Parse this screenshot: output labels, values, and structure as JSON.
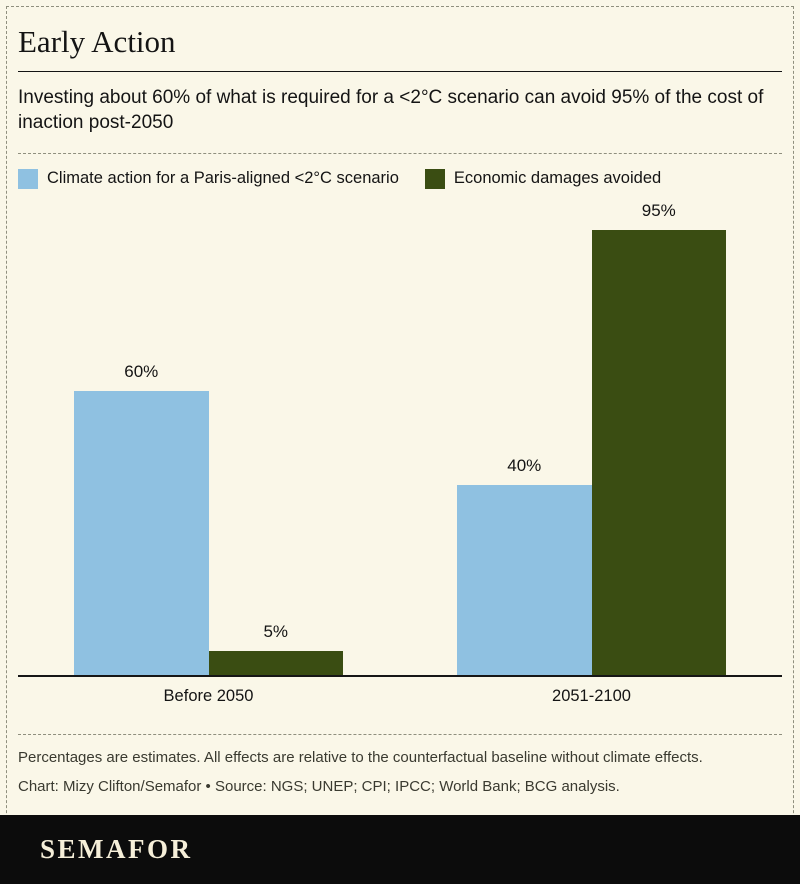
{
  "header": {
    "title": "Early Action",
    "subtitle": "Investing about 60% of what is required for a <2°C scenario can avoid 95% of the cost of inaction post-2050"
  },
  "legend": {
    "items": [
      {
        "label": "Climate action for a Paris-aligned <2°C scenario",
        "color": "#8FC1E1"
      },
      {
        "label": "Economic damages avoided",
        "color": "#3A4D12"
      }
    ]
  },
  "chart_data": {
    "type": "bar",
    "categories": [
      "Before 2050",
      "2051-2100"
    ],
    "series": [
      {
        "name": "Climate action for a Paris-aligned <2°C scenario",
        "key": "climate-action-bar",
        "values": [
          60,
          40
        ],
        "color": "#8FC1E1"
      },
      {
        "name": "Economic damages avoided",
        "key": "damages-avoided-bar",
        "values": [
          5,
          95
        ],
        "color": "#3A4D12"
      }
    ],
    "unit": "%",
    "ylim": [
      0,
      100
    ],
    "grid": false,
    "legend_position": "top",
    "value_labels": [
      "60%",
      "5%",
      "40%",
      "95%"
    ]
  },
  "footnotes": {
    "note": "Percentages are estimates. All effects are relative to the counterfactual baseline without climate effects.",
    "credit": "Chart: Mizy Clifton/Semafor • Source: NGS; UNEP; CPI; IPCC; World Bank; BCG analysis."
  },
  "footer": {
    "brand": "SEMAFOR"
  },
  "colors": {
    "background": "#FAF7E8",
    "frame_dash": "#8F8F7E",
    "text": "#141414",
    "muted_text": "#3A3A30",
    "footer_bg": "#0C0C0C",
    "footer_text": "#F6EFD9"
  }
}
